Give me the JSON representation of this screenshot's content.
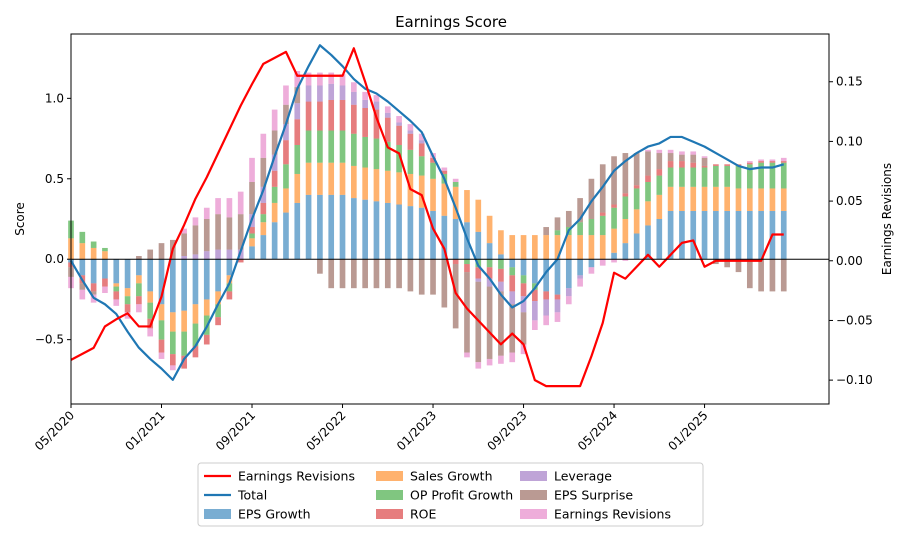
{
  "chart_data": {
    "type": "bar",
    "title": "Earnings Score",
    "ylabel_left": "Score",
    "ylabel_right": "Earnings Revisions",
    "ylim_left": [
      -0.9,
      1.4
    ],
    "ylim_right": [
      -0.12,
      0.19
    ],
    "yticks_left": [
      -0.5,
      0.0,
      0.5,
      1.0
    ],
    "ytick_labels_left": [
      "−0.5",
      "0.0",
      "0.5",
      "1.0"
    ],
    "yticks_right": [
      -0.1,
      -0.05,
      0.0,
      0.05,
      0.1,
      0.15
    ],
    "ytick_labels_right": [
      "−0.10",
      "−0.05",
      "0.00",
      "0.05",
      "0.10",
      "0.15"
    ],
    "x_start": "2020-05",
    "x_end": "2025-12",
    "xtick_dates": [
      "2020-05",
      "2021-01",
      "2021-09",
      "2022-05",
      "2023-01",
      "2023-09",
      "2024-05",
      "2025-01"
    ],
    "xtick_labels": [
      "05/2020",
      "01/2021",
      "09/2021",
      "05/2022",
      "01/2023",
      "09/2023",
      "05/2024",
      "01/2025"
    ],
    "dates": [
      "2020-05",
      "2020-06",
      "2020-07",
      "2020-08",
      "2020-09",
      "2020-10",
      "2020-11",
      "2020-12",
      "2021-01",
      "2021-02",
      "2021-03",
      "2021-04",
      "2021-05",
      "2021-06",
      "2021-07",
      "2021-08",
      "2021-09",
      "2021-10",
      "2021-11",
      "2021-12",
      "2022-01",
      "2022-02",
      "2022-03",
      "2022-04",
      "2022-05",
      "2022-06",
      "2022-07",
      "2022-08",
      "2022-09",
      "2022-10",
      "2022-11",
      "2022-12",
      "2023-01",
      "2023-02",
      "2023-03",
      "2023-04",
      "2023-05",
      "2023-06",
      "2023-07",
      "2023-08",
      "2023-09",
      "2023-10",
      "2023-11",
      "2023-12",
      "2024-01",
      "2024-02",
      "2024-03",
      "2024-04",
      "2024-05",
      "2024-06",
      "2024-07",
      "2024-08",
      "2024-09",
      "2024-10",
      "2024-11",
      "2024-12",
      "2025-01",
      "2025-02",
      "2025-03",
      "2025-04",
      "2025-05",
      "2025-06",
      "2025-07",
      "2025-08"
    ],
    "bar_series": [
      {
        "name": "EPS Growth",
        "color": "#1f77b4",
        "values": [
          -0.02,
          -0.1,
          -0.15,
          -0.12,
          -0.15,
          -0.18,
          -0.1,
          -0.2,
          -0.28,
          -0.33,
          -0.32,
          -0.28,
          -0.25,
          -0.2,
          -0.1,
          0.0,
          0.08,
          0.15,
          0.23,
          0.29,
          0.35,
          0.4,
          0.4,
          0.4,
          0.4,
          0.38,
          0.37,
          0.36,
          0.35,
          0.34,
          0.33,
          0.32,
          0.3,
          0.27,
          0.25,
          0.23,
          0.17,
          0.1,
          0.03,
          -0.05,
          -0.1,
          -0.15,
          -0.2,
          -0.22,
          -0.18,
          -0.1,
          -0.05,
          0.0,
          0.04,
          0.1,
          0.16,
          0.21,
          0.25,
          0.3,
          0.3,
          0.3,
          0.3,
          0.3,
          0.3,
          0.3,
          0.3,
          0.3,
          0.3,
          0.3
        ]
      },
      {
        "name": "Sales Growth",
        "color": "#ff7f0e",
        "values": [
          0.13,
          0.1,
          0.07,
          0.05,
          -0.02,
          -0.05,
          -0.05,
          -0.07,
          -0.1,
          -0.12,
          -0.13,
          -0.12,
          -0.1,
          -0.08,
          -0.05,
          0.0,
          0.05,
          0.08,
          0.12,
          0.15,
          0.18,
          0.2,
          0.2,
          0.2,
          0.2,
          0.2,
          0.2,
          0.2,
          0.2,
          0.2,
          0.2,
          0.2,
          0.2,
          0.2,
          0.2,
          0.2,
          0.2,
          0.17,
          0.15,
          0.15,
          0.15,
          0.15,
          0.15,
          0.15,
          0.15,
          0.15,
          0.15,
          0.15,
          0.15,
          0.15,
          0.15,
          0.15,
          0.15,
          0.15,
          0.15,
          0.15,
          0.15,
          0.15,
          0.15,
          0.14,
          0.14,
          0.14,
          0.14,
          0.14
        ]
      },
      {
        "name": "OP Profit Growth",
        "color": "#2ca02c",
        "values": [
          0.11,
          0.07,
          0.04,
          0.02,
          -0.03,
          -0.05,
          -0.08,
          -0.1,
          -0.12,
          -0.14,
          -0.15,
          -0.14,
          -0.12,
          -0.08,
          -0.05,
          0.0,
          0.03,
          0.05,
          0.1,
          0.15,
          0.18,
          0.2,
          0.2,
          0.2,
          0.2,
          0.2,
          0.19,
          0.19,
          0.18,
          0.17,
          0.15,
          0.12,
          0.1,
          0.06,
          0.03,
          -0.03,
          -0.05,
          -0.05,
          -0.06,
          -0.05,
          -0.05,
          -0.04,
          0.0,
          0.03,
          0.05,
          0.08,
          0.1,
          0.12,
          0.13,
          0.14,
          0.13,
          0.12,
          0.12,
          0.12,
          0.12,
          0.12,
          0.12,
          0.13,
          0.13,
          0.14,
          0.15,
          0.16,
          0.16,
          0.16
        ]
      },
      {
        "name": "ROE",
        "color": "#d62728",
        "values": [
          -0.03,
          -0.05,
          -0.05,
          -0.05,
          -0.05,
          -0.05,
          -0.05,
          -0.06,
          -0.08,
          -0.07,
          -0.08,
          -0.07,
          -0.06,
          -0.05,
          -0.05,
          -0.02,
          0.04,
          0.07,
          0.1,
          0.15,
          0.16,
          0.18,
          0.18,
          0.19,
          0.19,
          0.18,
          0.18,
          0.18,
          0.15,
          0.12,
          0.1,
          0.08,
          0.03,
          0.02,
          -0.03,
          -0.05,
          -0.07,
          -0.07,
          -0.08,
          -0.1,
          -0.08,
          -0.07,
          -0.05,
          -0.03,
          0.0,
          0.0,
          0.0,
          0.02,
          0.02,
          0.02,
          0.02,
          0.04,
          0.04,
          0.04,
          0.04,
          0.03,
          0.01,
          0.01,
          0.01,
          0.01,
          0.01,
          0.01,
          0.01,
          0.01
        ]
      },
      {
        "name": "Leverage",
        "color": "#9467bd",
        "values": [
          0.0,
          0.0,
          0.0,
          0.0,
          0.0,
          0.0,
          0.0,
          0.0,
          0.0,
          0.0,
          0.02,
          0.03,
          0.05,
          0.06,
          0.06,
          0.06,
          0.08,
          0.1,
          0.1,
          0.1,
          0.1,
          0.1,
          0.1,
          0.1,
          0.09,
          0.08,
          0.05,
          0.05,
          0.03,
          0.02,
          0.02,
          0.02,
          0.0,
          0.0,
          0.0,
          0.0,
          -0.02,
          -0.05,
          -0.06,
          -0.08,
          -0.1,
          -0.12,
          -0.1,
          -0.08,
          -0.05,
          -0.02,
          0.0,
          0.0,
          0.0,
          0.0,
          0.0,
          0.0,
          0.0,
          0.0,
          0.0,
          0.0,
          0.0,
          0.0,
          0.0,
          0.0,
          0.0,
          0.0,
          0.0,
          0.0
        ]
      },
      {
        "name": "EPS Surprise",
        "color": "#8c564b",
        "values": [
          -0.06,
          -0.04,
          -0.02,
          0.0,
          0.0,
          0.0,
          0.02,
          0.06,
          0.1,
          0.12,
          0.14,
          0.18,
          0.2,
          0.22,
          0.2,
          0.22,
          0.2,
          0.18,
          0.15,
          0.12,
          0.1,
          0.0,
          -0.09,
          -0.18,
          -0.18,
          -0.18,
          -0.18,
          -0.18,
          -0.18,
          -0.18,
          -0.2,
          -0.22,
          -0.22,
          -0.3,
          -0.4,
          -0.5,
          -0.5,
          -0.45,
          -0.4,
          -0.3,
          -0.2,
          0.0,
          0.05,
          0.08,
          0.1,
          0.15,
          0.25,
          0.3,
          0.3,
          0.25,
          0.2,
          0.15,
          0.1,
          0.05,
          0.04,
          0.05,
          0.05,
          -0.03,
          -0.05,
          -0.08,
          -0.18,
          -0.2,
          -0.2,
          -0.2
        ]
      },
      {
        "name": "Earnings Revisions",
        "color": "#e377c2",
        "values": [
          -0.07,
          -0.06,
          -0.05,
          -0.04,
          -0.04,
          -0.04,
          -0.05,
          -0.05,
          -0.04,
          -0.03,
          0.03,
          0.05,
          0.07,
          0.1,
          0.12,
          0.14,
          0.15,
          0.15,
          0.13,
          0.12,
          0.1,
          0.08,
          0.08,
          0.07,
          0.07,
          0.06,
          0.05,
          0.04,
          0.04,
          0.04,
          0.04,
          0.04,
          0.03,
          0.02,
          0.02,
          -0.03,
          -0.04,
          -0.04,
          -0.05,
          -0.06,
          -0.06,
          -0.06,
          -0.06,
          -0.06,
          -0.05,
          -0.05,
          -0.04,
          -0.04,
          -0.02,
          -0.01,
          0.0,
          0.01,
          0.02,
          0.02,
          0.02,
          0.02,
          0.01,
          0.0,
          0.0,
          0.0,
          0.01,
          0.01,
          0.01,
          0.02
        ]
      }
    ],
    "line_series": [
      {
        "name": "Total",
        "color": "#1f77b4",
        "axis": "left",
        "values": [
          -0.01,
          -0.13,
          -0.24,
          -0.28,
          -0.34,
          -0.45,
          -0.55,
          -0.62,
          -0.68,
          -0.75,
          -0.62,
          -0.54,
          -0.42,
          -0.28,
          -0.15,
          0.05,
          0.25,
          0.43,
          0.64,
          0.84,
          1.06,
          1.2,
          1.33,
          1.27,
          1.2,
          1.12,
          1.06,
          1.03,
          0.98,
          0.92,
          0.86,
          0.79,
          0.64,
          0.5,
          0.32,
          0.13,
          -0.04,
          -0.12,
          -0.22,
          -0.3,
          -0.26,
          -0.18,
          -0.08,
          0.0,
          0.18,
          0.25,
          0.36,
          0.45,
          0.55,
          0.61,
          0.66,
          0.7,
          0.72,
          0.76,
          0.76,
          0.73,
          0.7,
          0.66,
          0.62,
          0.58,
          0.56,
          0.57,
          0.57,
          0.59
        ]
      },
      {
        "name": "Earnings Revisions",
        "color": "#ff0000",
        "axis": "right",
        "values": [
          -0.083,
          -0.078,
          -0.073,
          -0.055,
          -0.049,
          -0.044,
          -0.055,
          -0.055,
          -0.03,
          0.01,
          0.03,
          0.052,
          0.07,
          0.09,
          0.11,
          0.13,
          0.148,
          0.165,
          0.17,
          0.175,
          0.155,
          0.155,
          0.155,
          0.155,
          0.155,
          0.178,
          0.15,
          0.12,
          0.095,
          0.09,
          0.06,
          0.055,
          0.027,
          0.01,
          -0.027,
          -0.04,
          -0.05,
          -0.06,
          -0.07,
          -0.061,
          -0.07,
          -0.1,
          -0.105,
          -0.105,
          -0.105,
          -0.105,
          -0.08,
          -0.052,
          -0.01,
          -0.015,
          -0.005,
          0.005,
          -0.005,
          0.005,
          0.015,
          0.017,
          -0.005,
          0.0,
          0.0,
          0.0,
          0.0,
          0.0,
          0.022,
          0.022
        ]
      }
    ],
    "legend": {
      "placement": "bottom-center",
      "entries": [
        {
          "label": "Earnings Revisions",
          "kind": "line",
          "color": "#ff0000"
        },
        {
          "label": "Total",
          "kind": "line",
          "color": "#1f77b4"
        },
        {
          "label": "EPS Growth",
          "kind": "bar",
          "color": "#1f77b4"
        },
        {
          "label": "Sales Growth",
          "kind": "bar",
          "color": "#ff7f0e"
        },
        {
          "label": "OP Profit Growth",
          "kind": "bar",
          "color": "#2ca02c"
        },
        {
          "label": "ROE",
          "kind": "bar",
          "color": "#d62728"
        },
        {
          "label": "Leverage",
          "kind": "bar",
          "color": "#9467bd"
        },
        {
          "label": "EPS Surprise",
          "kind": "bar",
          "color": "#8c564b"
        },
        {
          "label": "Earnings Revisions",
          "kind": "bar",
          "color": "#e377c2"
        }
      ]
    },
    "grid": false
  }
}
